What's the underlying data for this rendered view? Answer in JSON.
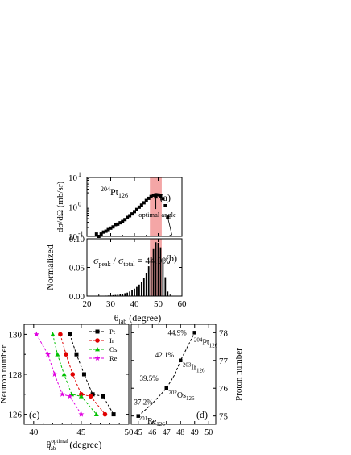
{
  "chart_data": [
    {
      "panel": "(a)",
      "type": "line",
      "title": "",
      "nucleus_label": {
        "mass": "204",
        "symbol": "Pt",
        "sub": "126"
      },
      "ylabel": "dσ/dΩ (mb/sr)",
      "yscale": "log",
      "ylim": [
        0.1,
        10
      ],
      "yticks": [
        {
          "value": 0.1,
          "base": "10",
          "exp": "-1"
        },
        {
          "value": 1,
          "base": "10",
          "exp": "0"
        },
        {
          "value": 10,
          "base": "10",
          "exp": "1"
        }
      ],
      "xlim": [
        20,
        60
      ],
      "xticks": [
        20,
        30,
        40,
        50,
        60
      ],
      "x_tick_labels_shown": false,
      "highlight_band": {
        "from": 46.5,
        "to": 51.5,
        "color": "#f4a6a6"
      },
      "annotation": {
        "text": "optimal angle",
        "x": 49,
        "y": 3.0
      },
      "series": [
        {
          "marker": "square",
          "color": "#000000",
          "x": [
            24,
            25,
            26,
            27,
            28,
            29,
            30,
            31,
            32,
            33,
            34,
            35,
            36,
            37,
            38,
            39,
            40,
            41,
            42,
            43,
            44,
            45,
            46,
            47,
            48,
            49,
            50,
            51,
            52,
            53,
            54
          ],
          "y": [
            0.12,
            0.1,
            0.12,
            0.14,
            0.15,
            0.17,
            0.19,
            0.21,
            0.25,
            0.26,
            0.29,
            0.32,
            0.37,
            0.44,
            0.5,
            0.58,
            0.69,
            0.82,
            0.98,
            1.15,
            1.38,
            1.65,
            1.95,
            2.25,
            2.5,
            2.6,
            2.55,
            2.35,
            1.9,
            1.1,
            0.45
          ]
        }
      ],
      "tail_line": {
        "x": [
          54,
          55.8
        ],
        "y": [
          0.45,
          0.11
        ]
      },
      "panel_label": "(a)"
    },
    {
      "panel": "(b)",
      "type": "bar",
      "ylabel_shared": "Normalized",
      "xlabel": {
        "base": "θ",
        "sub": "lab",
        "rest": " (degree)"
      },
      "xlim": [
        20,
        60
      ],
      "xticks": [
        20,
        30,
        40,
        50,
        60
      ],
      "ylim": [
        0,
        0.1
      ],
      "yticks": [
        "0.00",
        "0.05",
        "0.10"
      ],
      "highlight_band": {
        "from": 46.5,
        "to": 51.5,
        "color": "#f4a6a6"
      },
      "annotation": {
        "sigma": "σ",
        "peak": "peak",
        "sep": " / ",
        "total": "total",
        "value": " = 44.9%"
      },
      "x": [
        24,
        25,
        26,
        27,
        28,
        29,
        30,
        31,
        32,
        33,
        34,
        35,
        36,
        37,
        38,
        39,
        40,
        41,
        42,
        43,
        44,
        45,
        46,
        47,
        48,
        49,
        50,
        51,
        52,
        53,
        54
      ],
      "values": [
        0.0003,
        0.0004,
        0.0005,
        0.0006,
        0.0008,
        0.001,
        0.0013,
        0.0016,
        0.002,
        0.0025,
        0.003,
        0.004,
        0.005,
        0.006,
        0.008,
        0.01,
        0.013,
        0.016,
        0.02,
        0.025,
        0.032,
        0.04,
        0.052,
        0.068,
        0.082,
        0.094,
        0.093,
        0.085,
        0.066,
        0.033,
        0.008
      ],
      "panel_label": "(b)"
    },
    {
      "panel": "(c)",
      "type": "line",
      "xlabel": {
        "base": "θ",
        "sup": "optimal",
        "sub": "lab",
        "rest": " (degree)"
      },
      "ylabel": "Neutron number",
      "xlim": [
        39,
        50
      ],
      "xticks": [
        40,
        45,
        50
      ],
      "ylim": [
        125.5,
        130.5
      ],
      "yticks": [
        126,
        128,
        130
      ],
      "legend_position": "top-right",
      "series": [
        {
          "name": "Pt",
          "color": "#000000",
          "marker": "square",
          "x": [
            43.8,
            44.5,
            45.3,
            46.2,
            47.3,
            48.4
          ],
          "y": [
            130,
            129,
            128,
            127,
            126.9,
            126
          ]
        },
        {
          "name": "Ir",
          "color": "#e00000",
          "marker": "circle",
          "x": [
            42.8,
            43.4,
            44.1,
            45.0,
            46.0,
            47.5
          ],
          "y": [
            130,
            129,
            128,
            127,
            126.9,
            126
          ]
        },
        {
          "name": "Os",
          "color": "#00c000",
          "marker": "triangle",
          "x": [
            42.0,
            42.5,
            43.2,
            44.0,
            45.0,
            46.6
          ],
          "y": [
            130,
            129,
            128,
            127,
            126.9,
            126
          ]
        },
        {
          "name": "Re",
          "color": "#e000e0",
          "marker": "star",
          "x": [
            40.3,
            41.5,
            42.2,
            43.0,
            43.8,
            45.0
          ],
          "y": [
            130,
            129,
            128,
            127,
            126.9,
            126
          ]
        }
      ],
      "panel_label": "(c)"
    },
    {
      "panel": "(d)",
      "type": "scatter",
      "ylabel_right": "Proton number",
      "xlim": [
        44.5,
        50.5
      ],
      "xticks": [
        45,
        46,
        47,
        48,
        49,
        50
      ],
      "ylim": [
        74.7,
        78.3
      ],
      "yticks": [
        75,
        76,
        77,
        78
      ],
      "series": [
        {
          "marker": "square",
          "color": "#000000",
          "x": [
            45.0,
            47.0,
            48.0,
            49.0
          ],
          "y": [
            75,
            76,
            77,
            78
          ]
        }
      ],
      "dashed_curve": [
        [
          45.0,
          75.0
        ],
        [
          46.0,
          75.45
        ],
        [
          47.0,
          76.0
        ],
        [
          47.6,
          76.5
        ],
        [
          48.0,
          77.0
        ],
        [
          48.5,
          77.5
        ],
        [
          49.0,
          78.0
        ]
      ],
      "percent_labels": [
        {
          "text": "44.9%",
          "x": 47.1,
          "y": 78.0
        },
        {
          "text": "42.1%",
          "x": 46.2,
          "y": 77.2
        },
        {
          "text": "39.5%",
          "x": 45.1,
          "y": 76.35
        },
        {
          "text": "37.2%",
          "x": 44.7,
          "y": 75.5
        }
      ],
      "nucleus_labels": [
        {
          "mass": "204",
          "symbol": "Pt",
          "sub": "126",
          "x": 48.95,
          "y": 77.65
        },
        {
          "mass": "203",
          "symbol": "Ir",
          "sub": "126",
          "x": 48.15,
          "y": 76.75
        },
        {
          "mass": "202",
          "symbol": "Os",
          "sub": "126",
          "x": 47.15,
          "y": 75.75
        },
        {
          "mass": "201",
          "symbol": "Re",
          "sub": "126",
          "x": 45.05,
          "y": 74.82
        }
      ],
      "panel_label": "(d)"
    }
  ]
}
